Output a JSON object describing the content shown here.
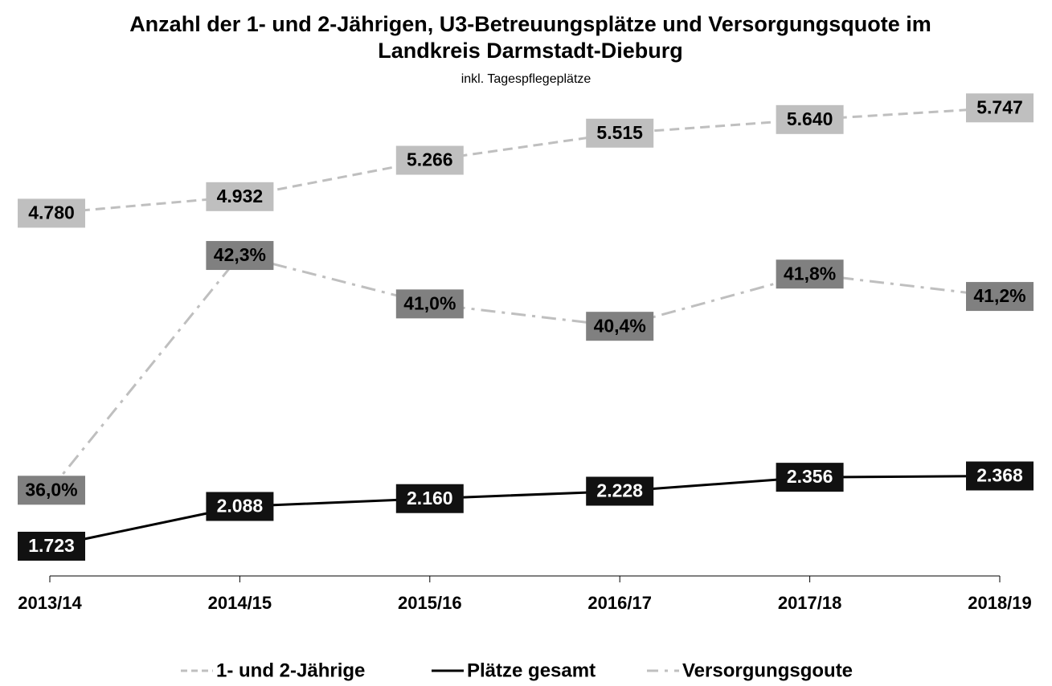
{
  "chart_data": {
    "type": "line",
    "title": "Anzahl der 1- und 2-Jährigen, U3-Betreuungsplätze und Versorgungsquote im Landkreis Darmstadt-Dieburg",
    "subtitle": "inkl. Tagespflegeplätze",
    "categories": [
      "2013/14",
      "2014/15",
      "2015/16",
      "2016/17",
      "2017/18",
      "2018/19"
    ],
    "ylim": [
      1450,
      6000
    ],
    "y2lim": [
      33.7,
      47
    ],
    "legend": "bottom",
    "series": [
      {
        "name": "1- und 2-Jährige",
        "color": "#bfbfbf",
        "dash": "dashed",
        "label_fill": "#bfbfbf",
        "label_color": "#000000",
        "values": [
          4780,
          4932,
          5266,
          5515,
          5640,
          5747
        ],
        "value_labels": [
          "4.780",
          "4.932",
          "5.266",
          "5.515",
          "5.640",
          "5.747"
        ]
      },
      {
        "name": "Plätze gesamt",
        "color": "#000000",
        "dash": "solid",
        "label_fill": "#111111",
        "label_color": "#ffffff",
        "values": [
          1723,
          2088,
          2160,
          2228,
          2356,
          2368
        ],
        "value_labels": [
          "1.723",
          "2.088",
          "2.160",
          "2.228",
          "2.356",
          "2.368"
        ]
      },
      {
        "name": "Versorgungsgoute",
        "color": "#bfbfbf",
        "dash": "dashdot",
        "axis": "y2",
        "label_fill": "#808080",
        "label_color": "#000000",
        "values": [
          36.0,
          42.3,
          41.0,
          40.4,
          41.8,
          41.2
        ],
        "value_labels": [
          "36,0%",
          "42,3%",
          "41,0%",
          "40,4%",
          "41,8%",
          "41,2%"
        ]
      }
    ]
  }
}
